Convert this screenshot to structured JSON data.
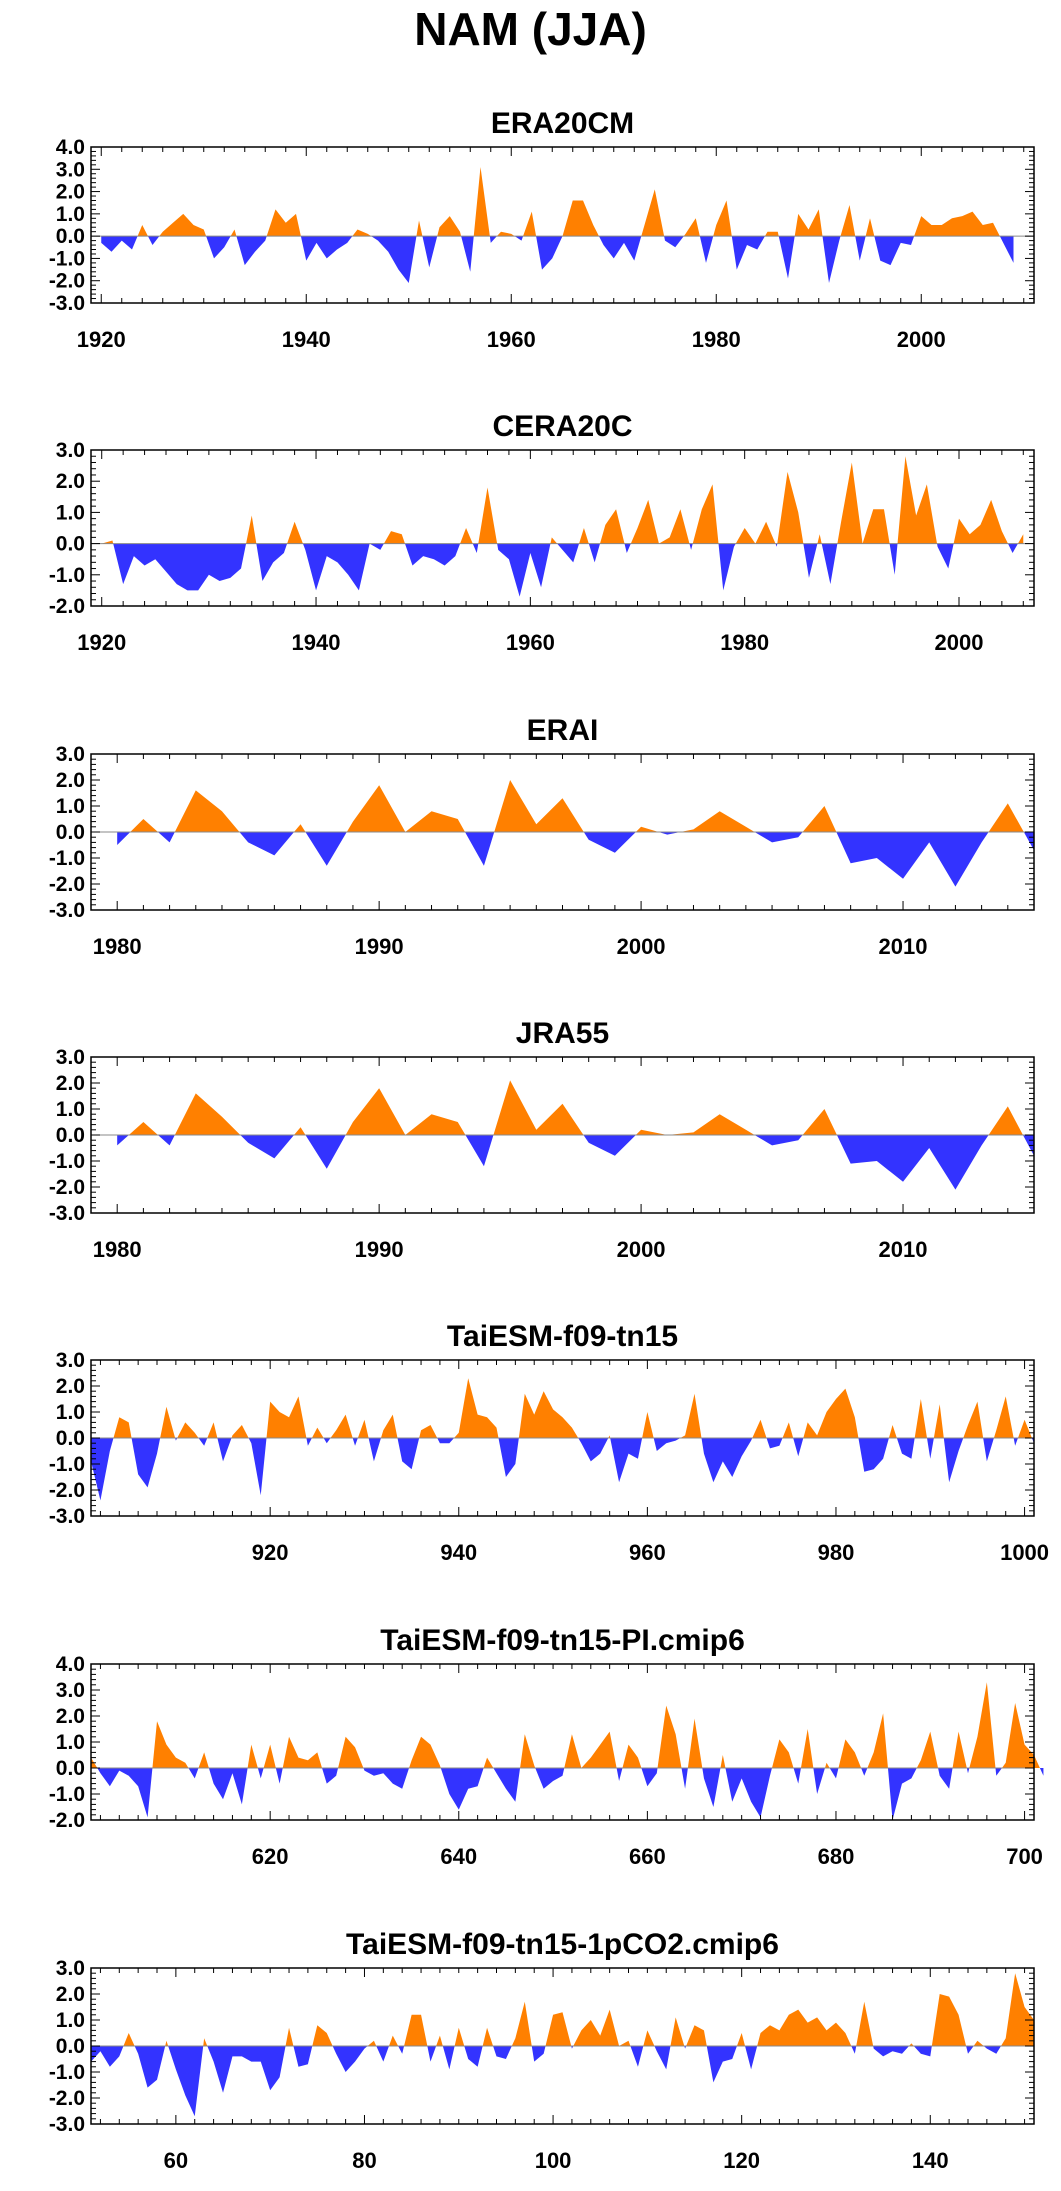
{
  "figure": {
    "title": "NAM (JJA)"
  },
  "colors": {
    "positive": "#ff8000",
    "negative": "#3333ff",
    "axis": "#000000"
  },
  "chart_data": [
    {
      "type": "area",
      "title": "ERA20CM",
      "xlim": [
        1919,
        2011
      ],
      "ylim": [
        -3,
        4
      ],
      "y_ticks": [
        4,
        3,
        2,
        1,
        0,
        -1,
        -2,
        -3
      ],
      "y_tick_labels": [
        "4.0",
        "3.0",
        "2.0",
        "1.0",
        "0.0",
        "-1.0",
        "-2.0",
        "-3.0"
      ],
      "x_ticks": [
        1920,
        1940,
        1960,
        1980,
        2000
      ],
      "x_start": 1920,
      "values": [
        -0.3,
        -0.7,
        -0.2,
        -0.6,
        0.5,
        -0.4,
        0.2,
        0.6,
        1.0,
        0.5,
        0.3,
        -1.0,
        -0.5,
        0.3,
        -1.3,
        -0.7,
        -0.2,
        1.2,
        0.6,
        1.0,
        -1.1,
        -0.3,
        -1.0,
        -0.6,
        -0.3,
        0.3,
        0.1,
        -0.2,
        -0.7,
        -1.5,
        -2.1,
        0.7,
        -1.4,
        0.4,
        0.9,
        0.2,
        -1.6,
        3.1,
        -0.3,
        0.2,
        0.1,
        -0.2,
        1.1,
        -1.5,
        -1.0,
        0.0,
        1.6,
        1.6,
        0.5,
        -0.4,
        -1.0,
        -0.3,
        -1.1,
        0.5,
        2.1,
        -0.2,
        -0.5,
        0.1,
        0.8,
        -1.2,
        0.5,
        1.6,
        -1.5,
        -0.4,
        -0.6,
        0.2,
        0.2,
        -1.9,
        1.0,
        0.3,
        1.2,
        -2.1,
        -0.2,
        1.4,
        -1.1,
        0.8,
        -1.1,
        -1.3,
        -0.3,
        -0.4,
        0.9,
        0.5,
        0.5,
        0.8,
        0.9,
        1.1,
        0.5,
        0.6,
        -0.3,
        -1.2
      ]
    },
    {
      "type": "area",
      "title": "CERA20C",
      "xlim": [
        1919,
        2007
      ],
      "ylim": [
        -2,
        3
      ],
      "y_ticks": [
        3,
        2,
        1,
        0,
        -1,
        -2
      ],
      "y_tick_labels": [
        "3.0",
        "2.0",
        "1.0",
        "0.0",
        "-1.0",
        "-2.0"
      ],
      "x_ticks": [
        1920,
        1940,
        1960,
        1980,
        2000
      ],
      "x_start": 1920,
      "values": [
        0.0,
        0.1,
        -1.3,
        -0.4,
        -0.7,
        -0.5,
        -0.9,
        -1.3,
        -1.5,
        -1.5,
        -1.0,
        -1.2,
        -1.1,
        -0.8,
        0.9,
        -1.2,
        -0.6,
        -0.3,
        0.7,
        -0.2,
        -1.5,
        -0.4,
        -0.6,
        -1.0,
        -1.5,
        0.0,
        -0.2,
        0.4,
        0.3,
        -0.7,
        -0.4,
        -0.5,
        -0.7,
        -0.4,
        0.5,
        -0.3,
        1.8,
        -0.2,
        -0.5,
        -1.7,
        -0.3,
        -1.4,
        0.2,
        -0.2,
        -0.6,
        0.5,
        -0.6,
        0.6,
        1.1,
        -0.3,
        0.5,
        1.4,
        0.0,
        0.2,
        1.1,
        -0.2,
        1.1,
        1.9,
        -1.5,
        -0.1,
        0.5,
        0.0,
        0.7,
        -0.1,
        2.3,
        1.0,
        -1.1,
        0.3,
        -1.3,
        0.7,
        2.6,
        0.0,
        1.1,
        1.1,
        -1.0,
        2.8,
        0.9,
        1.9,
        -0.1,
        -0.8,
        0.8,
        0.3,
        0.6,
        1.4,
        0.4,
        -0.3,
        0.3
      ]
    },
    {
      "type": "area",
      "title": "ERAI",
      "xlim": [
        1979,
        2015
      ],
      "ylim": [
        -3,
        3
      ],
      "y_ticks": [
        3,
        2,
        1,
        0,
        -1,
        -2,
        -3
      ],
      "y_tick_labels": [
        "3.0",
        "2.0",
        "1.0",
        "0.0",
        "-1.0",
        "-2.0",
        "-3.0"
      ],
      "x_ticks": [
        1980,
        1990,
        2000,
        2010
      ],
      "x_start": 1980,
      "values": [
        -0.5,
        0.5,
        -0.4,
        1.6,
        0.8,
        -0.4,
        -0.9,
        0.3,
        -1.3,
        0.4,
        1.8,
        0.0,
        0.8,
        0.5,
        -1.3,
        2.0,
        0.3,
        1.3,
        -0.3,
        -0.8,
        0.2,
        -0.1,
        0.1,
        0.8,
        0.2,
        -0.4,
        -0.2,
        1.0,
        -1.2,
        -1.0,
        -1.8,
        -0.4,
        -2.1,
        -0.4,
        1.1,
        -0.7
      ]
    },
    {
      "type": "area",
      "title": "JRA55",
      "xlim": [
        1979,
        2015
      ],
      "ylim": [
        -3,
        3
      ],
      "y_ticks": [
        3,
        2,
        1,
        0,
        -1,
        -2,
        -3
      ],
      "y_tick_labels": [
        "3.0",
        "2.0",
        "1.0",
        "0.0",
        "-1.0",
        "-2.0",
        "-3.0"
      ],
      "x_ticks": [
        1980,
        1990,
        2000,
        2010
      ],
      "x_start": 1980,
      "values": [
        -0.4,
        0.5,
        -0.4,
        1.6,
        0.7,
        -0.3,
        -0.9,
        0.3,
        -1.3,
        0.5,
        1.8,
        0.0,
        0.8,
        0.5,
        -1.2,
        2.1,
        0.2,
        1.2,
        -0.3,
        -0.8,
        0.2,
        0.0,
        0.1,
        0.8,
        0.2,
        -0.4,
        -0.2,
        1.0,
        -1.1,
        -1.0,
        -1.8,
        -0.5,
        -2.1,
        -0.4,
        1.1,
        -0.8
      ]
    },
    {
      "type": "area",
      "title": "TaiESM-f09-tn15",
      "xlim": [
        901,
        1001
      ],
      "ylim": [
        -3,
        3
      ],
      "y_ticks": [
        3,
        2,
        1,
        0,
        -1,
        -2,
        -3
      ],
      "y_tick_labels": [
        "3.0",
        "2.0",
        "1.0",
        "0.0",
        "-1.0",
        "-2.0",
        "-3.0"
      ],
      "x_ticks": [
        920,
        940,
        960,
        980,
        1000
      ],
      "x_start": 901,
      "values": [
        -0.9,
        -2.4,
        -0.5,
        0.8,
        0.6,
        -1.4,
        -1.9,
        -0.6,
        1.2,
        -0.1,
        0.6,
        0.2,
        -0.3,
        0.6,
        -0.9,
        0.1,
        0.5,
        -0.2,
        -2.2,
        1.4,
        1.0,
        0.8,
        1.6,
        -0.3,
        0.4,
        -0.2,
        0.3,
        0.9,
        -0.3,
        0.7,
        -0.9,
        0.3,
        0.9,
        -0.9,
        -1.2,
        0.3,
        0.5,
        -0.2,
        -0.2,
        0.2,
        2.3,
        0.9,
        0.8,
        0.4,
        -1.5,
        -1.0,
        1.7,
        0.9,
        1.8,
        1.1,
        0.8,
        0.4,
        -0.2,
        -0.9,
        -0.6,
        0.1,
        -1.7,
        -0.6,
        -0.8,
        1.0,
        -0.5,
        -0.2,
        -0.1,
        0.1,
        1.7,
        -0.6,
        -1.7,
        -0.9,
        -1.5,
        -0.7,
        -0.1,
        0.7,
        -0.4,
        -0.3,
        0.6,
        -0.7,
        0.6,
        0.1,
        1.0,
        1.5,
        1.9,
        0.8,
        -1.3,
        -1.2,
        -0.8,
        0.5,
        -0.6,
        -0.8,
        1.5,
        -0.8,
        1.3,
        -1.7,
        -0.5,
        0.5,
        1.4,
        -0.9,
        0.3,
        1.6,
        -0.3,
        0.7,
        -0.2
      ]
    },
    {
      "type": "area",
      "title": "TaiESM-f09-tn15-PI.cmip6",
      "xlim": [
        601,
        701
      ],
      "ylim": [
        -2,
        4
      ],
      "y_ticks": [
        4,
        3,
        2,
        1,
        0,
        -1,
        -2
      ],
      "y_tick_labels": [
        "4.0",
        "3.0",
        "2.0",
        "1.0",
        "0.0",
        "-1.0",
        "-2.0"
      ],
      "x_ticks": [
        620,
        640,
        660,
        680,
        700
      ],
      "x_start": 601,
      "values": [
        0.4,
        -0.2,
        -0.7,
        -0.1,
        -0.3,
        -0.7,
        -1.9,
        1.8,
        0.9,
        0.4,
        0.2,
        -0.4,
        0.6,
        -0.6,
        -1.2,
        -0.2,
        -1.4,
        0.9,
        -0.4,
        0.9,
        -0.6,
        1.2,
        0.4,
        0.3,
        0.6,
        -0.6,
        -0.3,
        1.2,
        0.8,
        -0.1,
        -0.3,
        -0.2,
        -0.6,
        -0.8,
        0.3,
        1.2,
        0.9,
        0.1,
        -1.0,
        -1.6,
        -0.8,
        -0.7,
        0.4,
        -0.2,
        -0.8,
        -1.3,
        1.3,
        0.1,
        -0.8,
        -0.5,
        -0.3,
        1.3,
        0.0,
        0.4,
        0.9,
        1.4,
        -0.5,
        0.9,
        0.4,
        -0.7,
        -0.2,
        2.4,
        1.3,
        -0.8,
        1.9,
        -0.4,
        -1.5,
        0.5,
        -1.3,
        -0.4,
        -1.3,
        -1.9,
        -0.3,
        1.1,
        0.6,
        -0.6,
        1.5,
        -1.0,
        0.2,
        -0.4,
        1.1,
        0.6,
        -0.3,
        0.6,
        2.1,
        -2.0,
        -0.6,
        -0.4,
        0.3,
        1.4,
        -0.3,
        -0.8,
        1.4,
        -0.2,
        1.2,
        3.3,
        -0.3,
        0.2,
        2.5,
        0.9,
        0.5,
        -0.3
      ]
    },
    {
      "type": "area",
      "title": "TaiESM-f09-tn15-1pCO2.cmip6",
      "xlim": [
        51,
        151
      ],
      "ylim": [
        -3,
        3
      ],
      "y_ticks": [
        3,
        2,
        1,
        0,
        -1,
        -2,
        -3
      ],
      "y_tick_labels": [
        "3.0",
        "2.0",
        "1.0",
        "0.0",
        "-1.0",
        "-2.0",
        "-3.0"
      ],
      "x_ticks": [
        60,
        80,
        100,
        120,
        140
      ],
      "x_start": 51,
      "values": [
        -0.6,
        -0.2,
        -0.8,
        -0.4,
        0.5,
        -0.3,
        -1.6,
        -1.3,
        0.2,
        -0.9,
        -1.9,
        -2.7,
        0.3,
        -0.6,
        -1.8,
        -0.4,
        -0.4,
        -0.6,
        -0.6,
        -1.7,
        -1.2,
        0.7,
        -0.8,
        -0.7,
        0.8,
        0.5,
        -0.3,
        -1.0,
        -0.6,
        -0.1,
        0.2,
        -0.6,
        0.4,
        -0.3,
        1.2,
        1.2,
        -0.6,
        0.4,
        -0.9,
        0.7,
        -0.5,
        -0.8,
        0.7,
        -0.4,
        -0.5,
        0.3,
        1.7,
        -0.6,
        -0.3,
        1.2,
        1.3,
        -0.1,
        0.6,
        1.0,
        0.4,
        1.4,
        0.0,
        0.2,
        -0.8,
        0.6,
        -0.2,
        -0.9,
        1.1,
        -0.1,
        0.8,
        0.6,
        -1.4,
        -0.6,
        -0.5,
        0.5,
        -0.9,
        0.5,
        0.8,
        0.6,
        1.2,
        1.4,
        0.9,
        1.1,
        0.6,
        0.9,
        0.5,
        -0.3,
        1.7,
        -0.1,
        -0.4,
        -0.2,
        -0.3,
        0.1,
        -0.3,
        -0.4,
        2.0,
        1.9,
        1.2,
        -0.3,
        0.2,
        -0.1,
        -0.3,
        0.3,
        2.8,
        1.5,
        1.0
      ]
    }
  ]
}
